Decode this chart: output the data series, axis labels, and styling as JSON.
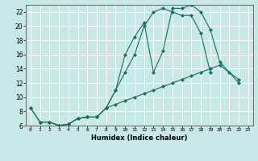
{
  "xlabel": "Humidex (Indice chaleur)",
  "bg_color": "#c8e8e8",
  "grid_color": "#b0d0d0",
  "line_color": "#1a6e60",
  "xlim": [
    -0.5,
    23.5
  ],
  "ylim": [
    6,
    23
  ],
  "xticks": [
    0,
    1,
    2,
    3,
    4,
    5,
    6,
    7,
    8,
    9,
    10,
    11,
    12,
    13,
    14,
    15,
    16,
    17,
    18,
    19,
    20,
    21,
    22,
    23
  ],
  "yticks": [
    6,
    8,
    10,
    12,
    14,
    16,
    18,
    20,
    22
  ],
  "series1_x": [
    0,
    1,
    2,
    3,
    4,
    5,
    6,
    7,
    8,
    9,
    10,
    11,
    12,
    13,
    14,
    15,
    16,
    17,
    18,
    19,
    20,
    21,
    22
  ],
  "series1_y": [
    8.5,
    6.5,
    6.5,
    6.0,
    6.2,
    7.0,
    7.2,
    7.2,
    8.5,
    11.0,
    16.0,
    18.5,
    20.5,
    13.5,
    16.5,
    22.5,
    22.5,
    23.0,
    22.0,
    19.5,
    15.0,
    13.5,
    12.0
  ],
  "series2_x": [
    0,
    1,
    2,
    3,
    4,
    5,
    6,
    7,
    8,
    9,
    10,
    11,
    12,
    13,
    14,
    15,
    16,
    17,
    18,
    19
  ],
  "series2_y": [
    8.5,
    6.5,
    6.5,
    6.0,
    6.2,
    7.0,
    7.2,
    7.2,
    8.5,
    11.0,
    13.5,
    16.0,
    20.0,
    22.0,
    22.5,
    22.0,
    21.5,
    21.5,
    19.0,
    13.5
  ],
  "series3_x": [
    1,
    2,
    3,
    4,
    5,
    6,
    7,
    8,
    9,
    10,
    11,
    12,
    13,
    14,
    15,
    16,
    17,
    18,
    19,
    20,
    22
  ],
  "series3_y": [
    6.5,
    6.5,
    6.0,
    6.2,
    7.0,
    7.2,
    7.2,
    8.5,
    9.0,
    9.5,
    10.0,
    10.5,
    11.0,
    11.5,
    12.0,
    12.5,
    13.0,
    13.5,
    14.0,
    14.5,
    12.5
  ]
}
